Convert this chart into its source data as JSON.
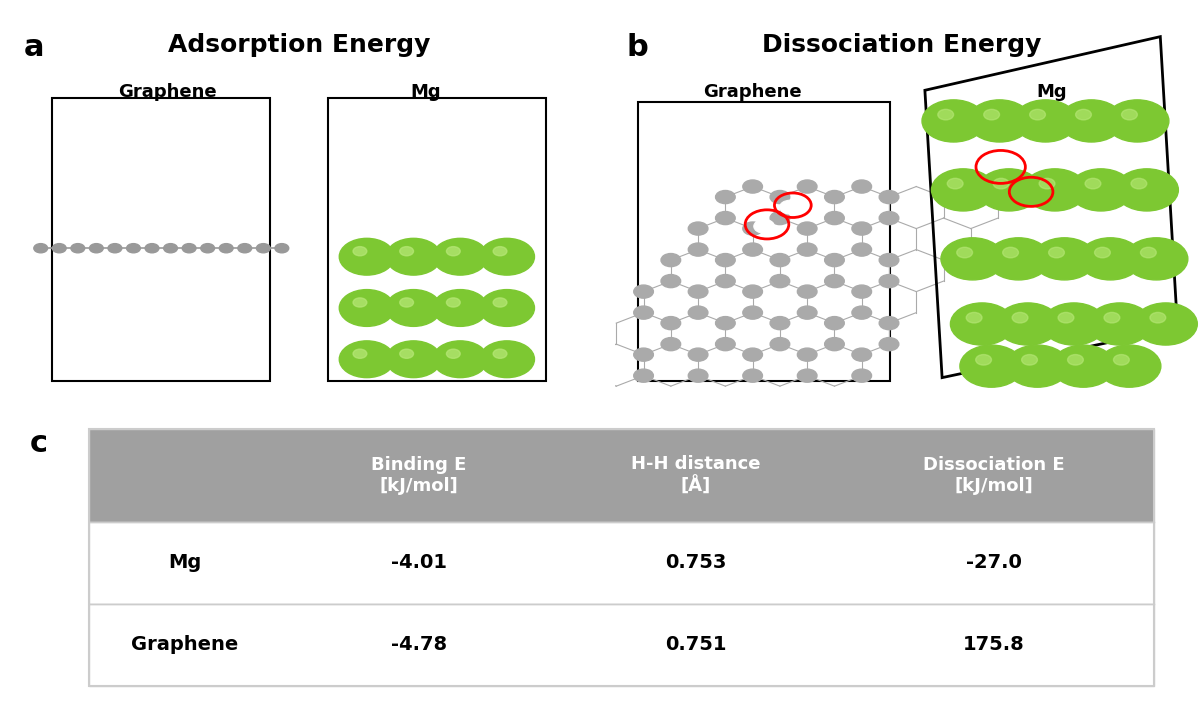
{
  "panel_a_title": "Adsorption Energy",
  "panel_b_title": "Dissociation Energy",
  "panel_c_label": "c",
  "panel_a_label": "a",
  "panel_b_label": "b",
  "graphene_label": "Graphene",
  "mg_label": "Mg",
  "table_headers": [
    "",
    "Binding E\n[kJ/mol]",
    "H-H distance\n[Å]",
    "Dissociation E\n[kJ/mol]"
  ],
  "table_rows": [
    [
      "Mg",
      "-4.01",
      "0.753",
      "-27.0"
    ],
    [
      "Graphene",
      "-4.78",
      "0.751",
      "175.8"
    ]
  ],
  "header_bg": "#a0a0a0",
  "header_text": "#ffffff",
  "row_bg": "#ffffff",
  "row_text": "#000000",
  "border_color": "#cccccc",
  "green_color": "#7dc832",
  "gray_color": "#999999",
  "white_color": "#ffffff",
  "red_color": "#ff0000",
  "fig_bg": "#ffffff"
}
